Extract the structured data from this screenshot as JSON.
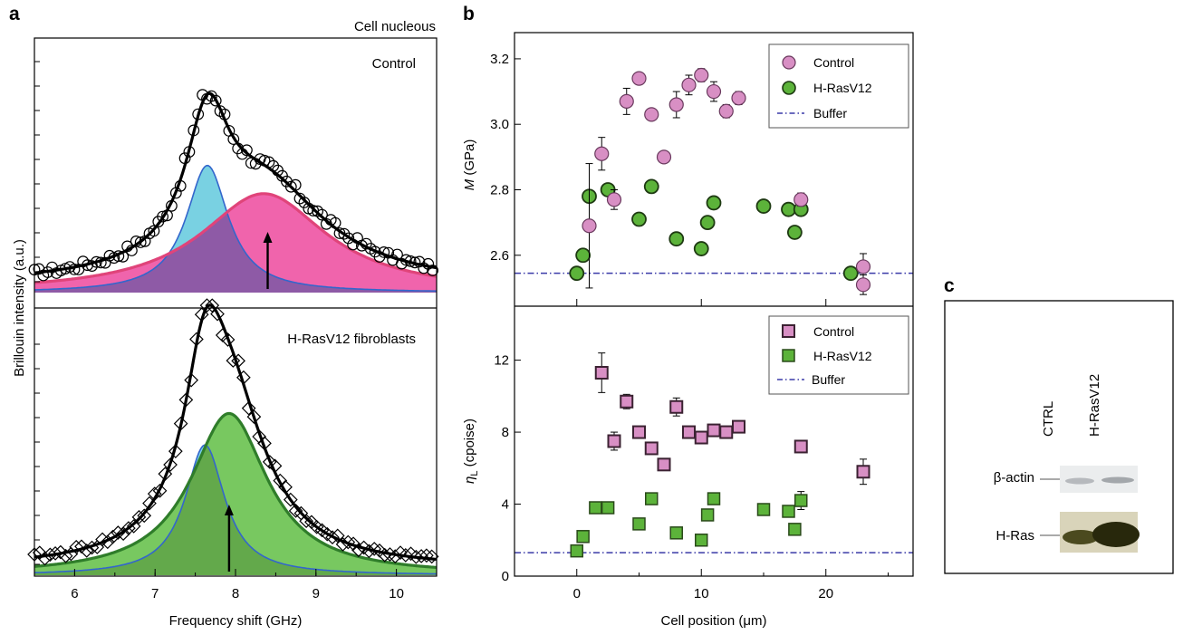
{
  "panel_labels": {
    "a": "a",
    "b": "b",
    "c": "c"
  },
  "panel_a": {
    "top_title": "Cell nucleous",
    "top_label": "Control",
    "bottom_label": "H-RasV12 fibroblasts",
    "ylabel": "Brillouin intensity (a.u.)",
    "xlabel": "Frequency shift (GHz)",
    "xticks": [
      "6",
      "7",
      "8",
      "9",
      "10"
    ]
  },
  "panel_b": {
    "xlabel": "Cell position (μm)",
    "xticks": [
      "0",
      "10",
      "20"
    ],
    "top": {
      "ylabel_symbol": "M",
      "ylabel_unit": " (GPa)",
      "yticks": [
        "2.6",
        "2.8",
        "3.0",
        "3.2"
      ],
      "legend": [
        "Control",
        "H-RasV12",
        "Buffer"
      ]
    },
    "bottom": {
      "ylabel_symbol": "η",
      "ylabel_sub": "L",
      "ylabel_unit": " (cpoise)",
      "yticks": [
        "0",
        "4",
        "8",
        "12"
      ],
      "legend": [
        "Control",
        "H-RasV12",
        "Buffer"
      ]
    }
  },
  "panel_c": {
    "lanes": [
      "CTRL",
      "H-RasV12"
    ],
    "rows": [
      "β-actin",
      "H-Ras"
    ]
  },
  "colors": {
    "control": "#d88fc4",
    "hras": "#5cb33a",
    "buffer": "#3a3aa8",
    "fit_blue": "#5cc7dc",
    "fit_pink": "#ee4fa0",
    "fit_green": "#65c04a"
  },
  "chart_data": [
    {
      "type": "scatter",
      "panel": "a-top",
      "title": "Cell nucleous",
      "xlabel": "Frequency shift (GHz)",
      "ylabel": "Brillouin intensity (a.u.)",
      "xlim": [
        5.5,
        10.5
      ],
      "peaks": [
        {
          "series": "narrow",
          "center": 7.65,
          "amplitude": 0.54,
          "width": 0.32
        },
        {
          "series": "broad",
          "center": 8.35,
          "amplitude": 0.42,
          "width": 0.95
        }
      ],
      "arrow_at": 8.4
    },
    {
      "type": "scatter",
      "panel": "a-bottom",
      "title": "H-RasV12 fibroblasts",
      "xlabel": "Frequency shift (GHz)",
      "ylabel": "Brillouin intensity (a.u.)",
      "xlim": [
        5.5,
        10.5
      ],
      "peaks": [
        {
          "series": "narrow",
          "center": 7.62,
          "amplitude": 0.58,
          "width": 0.3
        },
        {
          "series": "broad",
          "center": 7.92,
          "amplitude": 0.72,
          "width": 0.58
        }
      ],
      "arrow_at": 7.92
    },
    {
      "type": "scatter",
      "panel": "b-top",
      "xlabel": "Cell position (μm)",
      "ylabel": "M (GPa)",
      "xlim": [
        -5,
        27
      ],
      "ylim": [
        2.45,
        3.28
      ],
      "buffer": 2.545,
      "series": [
        {
          "name": "Control",
          "points": [
            [
              1,
              2.69,
              0.19
            ],
            [
              2,
              2.91,
              0.05
            ],
            [
              3,
              2.77,
              0.03
            ],
            [
              4,
              3.07,
              0.04
            ],
            [
              5,
              3.14,
              0.01
            ],
            [
              6,
              3.03,
              0.01
            ],
            [
              7,
              2.9,
              0.01
            ],
            [
              8,
              3.06,
              0.04
            ],
            [
              9,
              3.12,
              0.03
            ],
            [
              10,
              3.15,
              0.02
            ],
            [
              11,
              3.1,
              0.03
            ],
            [
              12,
              3.04,
              0.02
            ],
            [
              13,
              3.08,
              0.02
            ],
            [
              18,
              2.77,
              0.02
            ],
            [
              23,
              2.565,
              0.04
            ],
            [
              23,
              2.51,
              0.03
            ]
          ]
        },
        {
          "name": "H-RasV12",
          "points": [
            [
              0,
              2.545,
              0.01
            ],
            [
              0.5,
              2.6,
              0.01
            ],
            [
              1,
              2.78,
              0.01
            ],
            [
              2.5,
              2.8,
              0.01
            ],
            [
              5,
              2.71,
              0.01
            ],
            [
              6,
              2.81,
              0.01
            ],
            [
              8,
              2.65,
              0.01
            ],
            [
              10,
              2.62,
              0.01
            ],
            [
              10.5,
              2.7,
              0.01
            ],
            [
              11,
              2.76,
              0.01
            ],
            [
              15,
              2.75,
              0.01
            ],
            [
              17,
              2.74,
              0.01
            ],
            [
              17.5,
              2.67,
              0.01
            ],
            [
              18,
              2.74,
              0.01
            ],
            [
              22,
              2.545,
              0.01
            ]
          ]
        }
      ]
    },
    {
      "type": "scatter",
      "panel": "b-bottom",
      "xlabel": "Cell position (μm)",
      "ylabel": "ηL (cpoise)",
      "xlim": [
        -5,
        27
      ],
      "ylim": [
        0,
        15
      ],
      "buffer": 1.3,
      "series": [
        {
          "name": "Control",
          "points": [
            [
              2,
              11.3,
              1.1
            ],
            [
              3,
              7.5,
              0.5
            ],
            [
              4,
              9.7,
              0.4
            ],
            [
              5,
              8.0,
              0.2
            ],
            [
              6,
              7.1,
              0.2
            ],
            [
              7,
              6.2,
              0.2
            ],
            [
              8,
              9.4,
              0.5
            ],
            [
              9,
              8.0,
              0.2
            ],
            [
              10,
              7.7,
              0.2
            ],
            [
              11,
              8.1,
              0.2
            ],
            [
              12,
              8.0,
              0.2
            ],
            [
              13,
              8.3,
              0.2
            ],
            [
              18,
              7.2,
              0.2
            ],
            [
              23,
              5.8,
              0.7
            ]
          ]
        },
        {
          "name": "H-RasV12",
          "points": [
            [
              0,
              1.4,
              0.1
            ],
            [
              0.5,
              2.2,
              0.1
            ],
            [
              1.5,
              3.8,
              0.1
            ],
            [
              2.5,
              3.8,
              0.3
            ],
            [
              5,
              2.9,
              0.1
            ],
            [
              6,
              4.3,
              0.1
            ],
            [
              8,
              2.4,
              0.1
            ],
            [
              10,
              2.0,
              0.1
            ],
            [
              10.5,
              3.4,
              0.1
            ],
            [
              11,
              4.3,
              0.2
            ],
            [
              15,
              3.7,
              0.1
            ],
            [
              17,
              3.6,
              0.1
            ],
            [
              17.5,
              2.6,
              0.1
            ],
            [
              18,
              4.2,
              0.5
            ]
          ]
        }
      ]
    }
  ]
}
